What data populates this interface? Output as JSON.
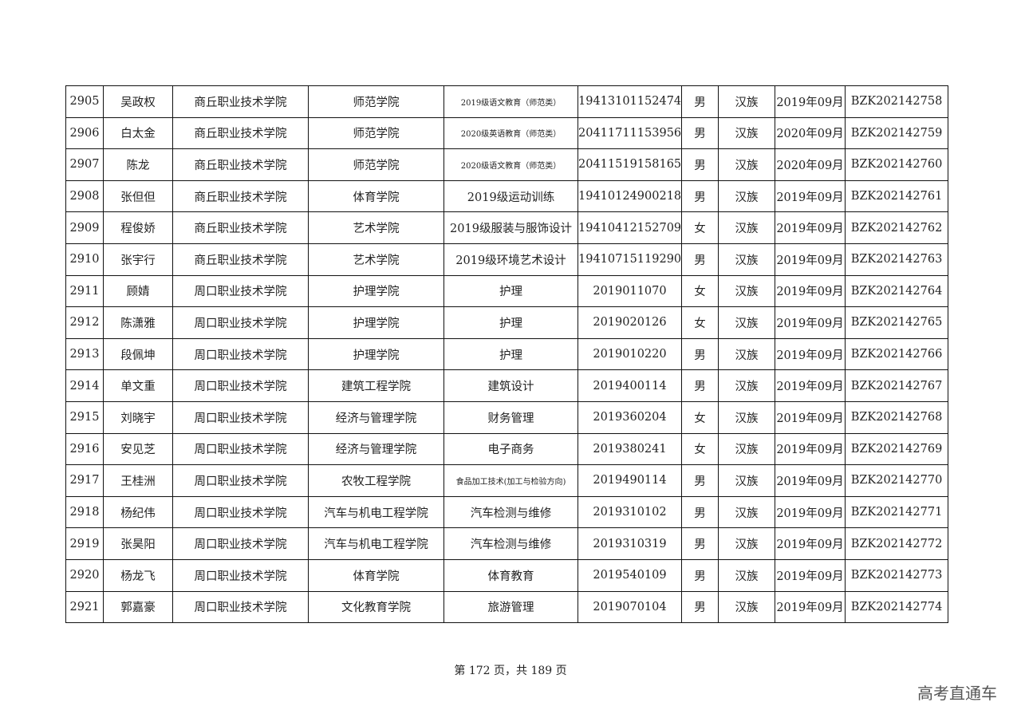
{
  "table": {
    "rows": [
      [
        "2905",
        "吴政权",
        "商丘职业技术学院",
        "师范学院",
        "2019级语文教育（师范类）",
        "19413101152474",
        "男",
        "汉族",
        "2019年09月",
        "BZK202142758"
      ],
      [
        "2906",
        "白太金",
        "商丘职业技术学院",
        "师范学院",
        "2020级英语教育（师范类）",
        "20411711153956",
        "男",
        "汉族",
        "2020年09月",
        "BZK202142759"
      ],
      [
        "2907",
        "陈龙",
        "商丘职业技术学院",
        "师范学院",
        "2020级语文教育（师范类）",
        "20411519158165",
        "男",
        "汉族",
        "2020年09月",
        "BZK202142760"
      ],
      [
        "2908",
        "张但但",
        "商丘职业技术学院",
        "体育学院",
        "2019级运动训练",
        "19410124900218",
        "男",
        "汉族",
        "2019年09月",
        "BZK202142761"
      ],
      [
        "2909",
        "程俊娇",
        "商丘职业技术学院",
        "艺术学院",
        "2019级服装与服饰设计",
        "19410412152709",
        "女",
        "汉族",
        "2019年09月",
        "BZK202142762"
      ],
      [
        "2910",
        "张宇行",
        "商丘职业技术学院",
        "艺术学院",
        "2019级环境艺术设计",
        "19410715119290",
        "男",
        "汉族",
        "2019年09月",
        "BZK202142763"
      ],
      [
        "2911",
        "顾婧",
        "周口职业技术学院",
        "护理学院",
        "护理",
        "2019011070",
        "女",
        "汉族",
        "2019年09月",
        "BZK202142764"
      ],
      [
        "2912",
        "陈潇雅",
        "周口职业技术学院",
        "护理学院",
        "护理",
        "2019020126",
        "女",
        "汉族",
        "2019年09月",
        "BZK202142765"
      ],
      [
        "2913",
        "段佩坤",
        "周口职业技术学院",
        "护理学院",
        "护理",
        "2019010220",
        "男",
        "汉族",
        "2019年09月",
        "BZK202142766"
      ],
      [
        "2914",
        "单文重",
        "周口职业技术学院",
        "建筑工程学院",
        "建筑设计",
        "2019400114",
        "男",
        "汉族",
        "2019年09月",
        "BZK202142767"
      ],
      [
        "2915",
        "刘晓宇",
        "周口职业技术学院",
        "经济与管理学院",
        "财务管理",
        "2019360204",
        "女",
        "汉族",
        "2019年09月",
        "BZK202142768"
      ],
      [
        "2916",
        "安见芝",
        "周口职业技术学院",
        "经济与管理学院",
        "电子商务",
        "2019380241",
        "女",
        "汉族",
        "2019年09月",
        "BZK202142769"
      ],
      [
        "2917",
        "王桂洲",
        "周口职业技术学院",
        "农牧工程学院",
        "食品加工技术(加工与检验方向)",
        "2019490114",
        "男",
        "汉族",
        "2019年09月",
        "BZK202142770"
      ],
      [
        "2918",
        "杨纪伟",
        "周口职业技术学院",
        "汽车与机电工程学院",
        "汽车检测与维修",
        "2019310102",
        "男",
        "汉族",
        "2019年09月",
        "BZK202142771"
      ],
      [
        "2919",
        "张昊阳",
        "周口职业技术学院",
        "汽车与机电工程学院",
        "汽车检测与维修",
        "2019310319",
        "男",
        "汉族",
        "2019年09月",
        "BZK202142772"
      ],
      [
        "2920",
        "杨龙飞",
        "周口职业技术学院",
        "体育学院",
        "体育教育",
        "2019540109",
        "男",
        "汉族",
        "2019年09月",
        "BZK202142773"
      ],
      [
        "2921",
        "郭嘉豪",
        "周口职业技术学院",
        "文化教育学院",
        "旅游管理",
        "2019070104",
        "男",
        "汉族",
        "2019年09月",
        "BZK202142774"
      ]
    ]
  },
  "footer": {
    "page_info": "第 172 页，共 189 页"
  },
  "watermark": {
    "text": "高考直通车"
  }
}
